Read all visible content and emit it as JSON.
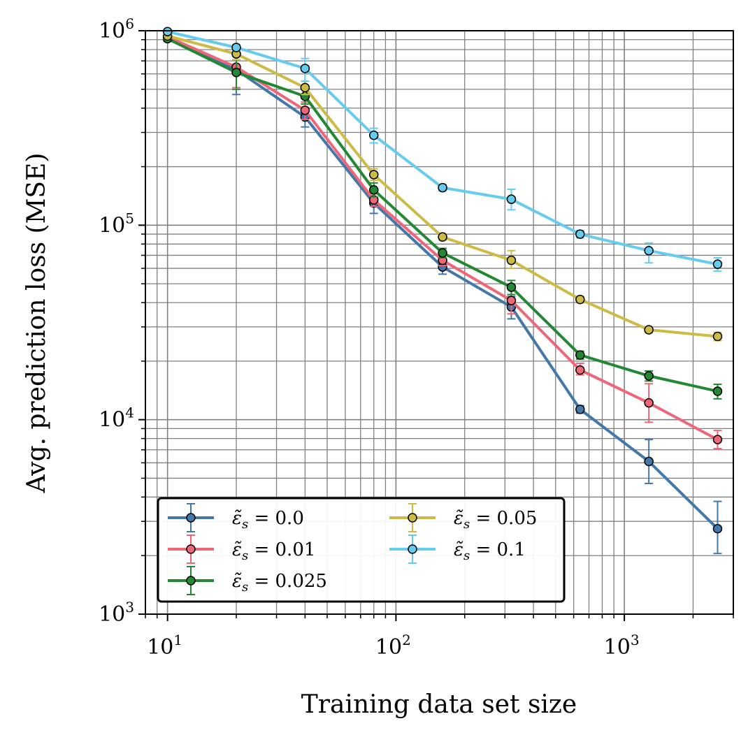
{
  "chart_data": {
    "type": "line",
    "xscale": "log",
    "yscale": "log",
    "xlabel": "Training data set size",
    "ylabel": "Avg. prediction loss (MSE)",
    "xlim": [
      8,
      3000
    ],
    "ylim": [
      1000,
      1000000
    ],
    "grid": true,
    "x_ticks": [
      {
        "value": 10,
        "base": "10",
        "exp": "1"
      },
      {
        "value": 100,
        "base": "10",
        "exp": "2"
      },
      {
        "value": 1000,
        "base": "10",
        "exp": "3"
      }
    ],
    "y_ticks": [
      {
        "value": 1000,
        "base": "10",
        "exp": "3"
      },
      {
        "value": 10000,
        "base": "10",
        "exp": "4"
      },
      {
        "value": 100000,
        "base": "10",
        "exp": "5"
      },
      {
        "value": 1000000,
        "base": "10",
        "exp": "6"
      }
    ],
    "x": [
      10,
      20,
      40,
      80,
      160,
      320,
      640,
      1280,
      2560
    ],
    "legend": {
      "position": "lower-left",
      "columns": 2
    },
    "series": [
      {
        "name": "ε̃s = 0.0",
        "label_prefix": "ε̃",
        "label_sub": "s",
        "label_value": " = 0.0",
        "color": "#4477aa",
        "values": [
          920000,
          630000,
          360000,
          130000,
          61000,
          38000,
          11300,
          6100,
          2750
        ],
        "err": [
          [
            890000,
            950000
          ],
          [
            470000,
            800000
          ],
          [
            320000,
            400000
          ],
          [
            115000,
            145000
          ],
          [
            56000,
            66000
          ],
          [
            33000,
            43000
          ],
          [
            10800,
            11800
          ],
          [
            4700,
            7900
          ],
          [
            2050,
            3800
          ]
        ]
      },
      {
        "name": "ε̃s = 0.01",
        "label_prefix": "ε̃",
        "label_sub": "s",
        "label_value": " = 0.01",
        "color": "#ee6677",
        "values": [
          930000,
          650000,
          390000,
          135000,
          66000,
          41000,
          18000,
          12200,
          7900
        ],
        "err": [
          [
            900000,
            960000
          ],
          [
            510000,
            810000
          ],
          [
            350000,
            430000
          ],
          [
            125000,
            145000
          ],
          [
            62000,
            70000
          ],
          [
            35000,
            47000
          ],
          [
            17000,
            19500
          ],
          [
            9700,
            15300
          ],
          [
            7100,
            8800
          ]
        ]
      },
      {
        "name": "ε̃s = 0.025",
        "label_prefix": "ε̃",
        "label_sub": "s",
        "label_value": " = 0.025",
        "color": "#228833",
        "values": [
          910000,
          610000,
          460000,
          152000,
          72000,
          48000,
          21500,
          16800,
          14000
        ],
        "err": [
          [
            880000,
            940000
          ],
          [
            500000,
            740000
          ],
          [
            420000,
            500000
          ],
          [
            140000,
            165000
          ],
          [
            68000,
            76000
          ],
          [
            44000,
            52000
          ],
          [
            20500,
            22500
          ],
          [
            15800,
            17800
          ],
          [
            12800,
            15200
          ]
        ]
      },
      {
        "name": "ε̃s = 0.05",
        "label_prefix": "ε̃",
        "label_sub": "s",
        "label_value": " = 0.05",
        "color": "#ccbb44",
        "values": [
          940000,
          760000,
          510000,
          182000,
          87000,
          66000,
          41500,
          29000,
          26800
        ],
        "err": [
          [
            910000,
            970000
          ],
          [
            710000,
            810000
          ],
          [
            470000,
            550000
          ],
          [
            170000,
            195000
          ],
          [
            84000,
            90000
          ],
          [
            60000,
            74000
          ],
          [
            40000,
            43000
          ],
          [
            28000,
            30000
          ],
          [
            25500,
            28100
          ]
        ]
      },
      {
        "name": "ε̃s = 0.1",
        "label_prefix": "ε̃",
        "label_sub": "s",
        "label_value": " = 0.1",
        "color": "#66ccee",
        "values": [
          990000,
          820000,
          640000,
          290000,
          156000,
          136000,
          90000,
          74000,
          63000
        ],
        "err": [
          [
            960000,
            1000000
          ],
          [
            790000,
            850000
          ],
          [
            550000,
            720000
          ],
          [
            265000,
            315000
          ],
          [
            150000,
            162000
          ],
          [
            120000,
            153000
          ],
          [
            86000,
            94000
          ],
          [
            64000,
            81000
          ],
          [
            58000,
            68000
          ]
        ]
      }
    ]
  }
}
